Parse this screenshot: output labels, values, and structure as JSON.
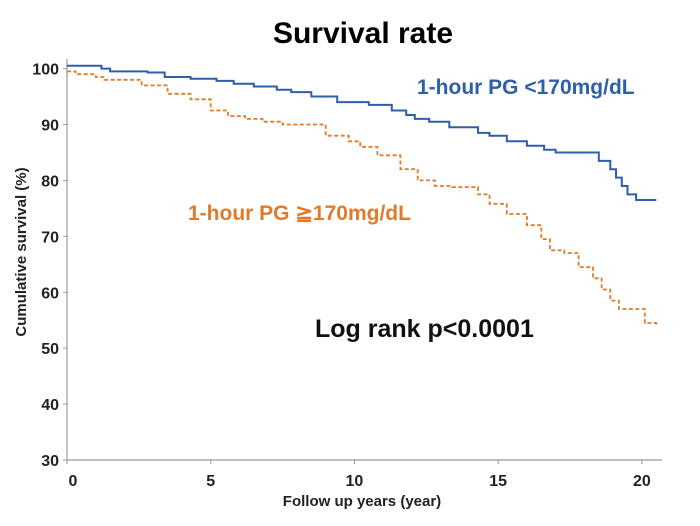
{
  "chart_data": {
    "type": "line",
    "step": true,
    "title": "Survival rate",
    "xlabel": "Follow up years (year)",
    "ylabel": "Cumulative survival (%)",
    "xlim": [
      0,
      20.7
    ],
    "ylim": [
      30,
      101
    ],
    "xticks": [
      0,
      5,
      10,
      15,
      20
    ],
    "yticks": [
      30,
      40,
      50,
      60,
      70,
      80,
      90,
      100
    ],
    "annotation": "Log rank p<0.0001",
    "series": [
      {
        "name": "1-hour PG <170mg/dL",
        "color": "#2e5fa8",
        "style": "solid",
        "x": [
          0,
          1.2,
          1.5,
          2.8,
          3.4,
          4.3,
          5.2,
          5.8,
          6.5,
          7.3,
          7.8,
          8.5,
          9.4,
          10.5,
          11.3,
          11.8,
          12.1,
          12.6,
          13.3,
          14.3,
          14.7,
          15.3,
          16.0,
          16.6,
          17.0,
          18.5,
          18.9,
          19.1,
          19.3,
          19.5,
          19.8,
          20.5
        ],
        "y": [
          100.5,
          100,
          99.5,
          99.3,
          98.5,
          98.2,
          97.8,
          97.3,
          96.8,
          96.2,
          95.8,
          95,
          94,
          93.5,
          92.5,
          91.7,
          91,
          90.5,
          89.5,
          88.5,
          88,
          87,
          86.2,
          85.5,
          85,
          83.5,
          82,
          80.5,
          79,
          77.5,
          76.5,
          76.5
        ]
      },
      {
        "name": "1-hour PG ≧170mg/dL",
        "color": "#e07b2a",
        "style": "dashed",
        "x": [
          0,
          0.3,
          1.0,
          1.3,
          2.6,
          3.5,
          4.3,
          5.0,
          5.6,
          6.2,
          6.8,
          7.5,
          9.0,
          9.8,
          10.2,
          10.8,
          11.6,
          12.2,
          12.8,
          13.4,
          14.3,
          14.7,
          15.3,
          16.0,
          16.5,
          16.8,
          17.3,
          17.8,
          18.3,
          18.6,
          18.9,
          19.2,
          20.1,
          20.5
        ],
        "y": [
          99.5,
          99,
          98.5,
          98,
          97,
          95.5,
          94.5,
          92.5,
          91.5,
          91,
          90.5,
          90,
          88,
          87,
          86,
          84.5,
          82,
          80,
          79,
          78.8,
          77.5,
          75.8,
          74,
          72,
          69.5,
          67.5,
          67,
          64.5,
          62.5,
          60.5,
          58.5,
          57,
          54.5,
          54
        ]
      }
    ]
  }
}
